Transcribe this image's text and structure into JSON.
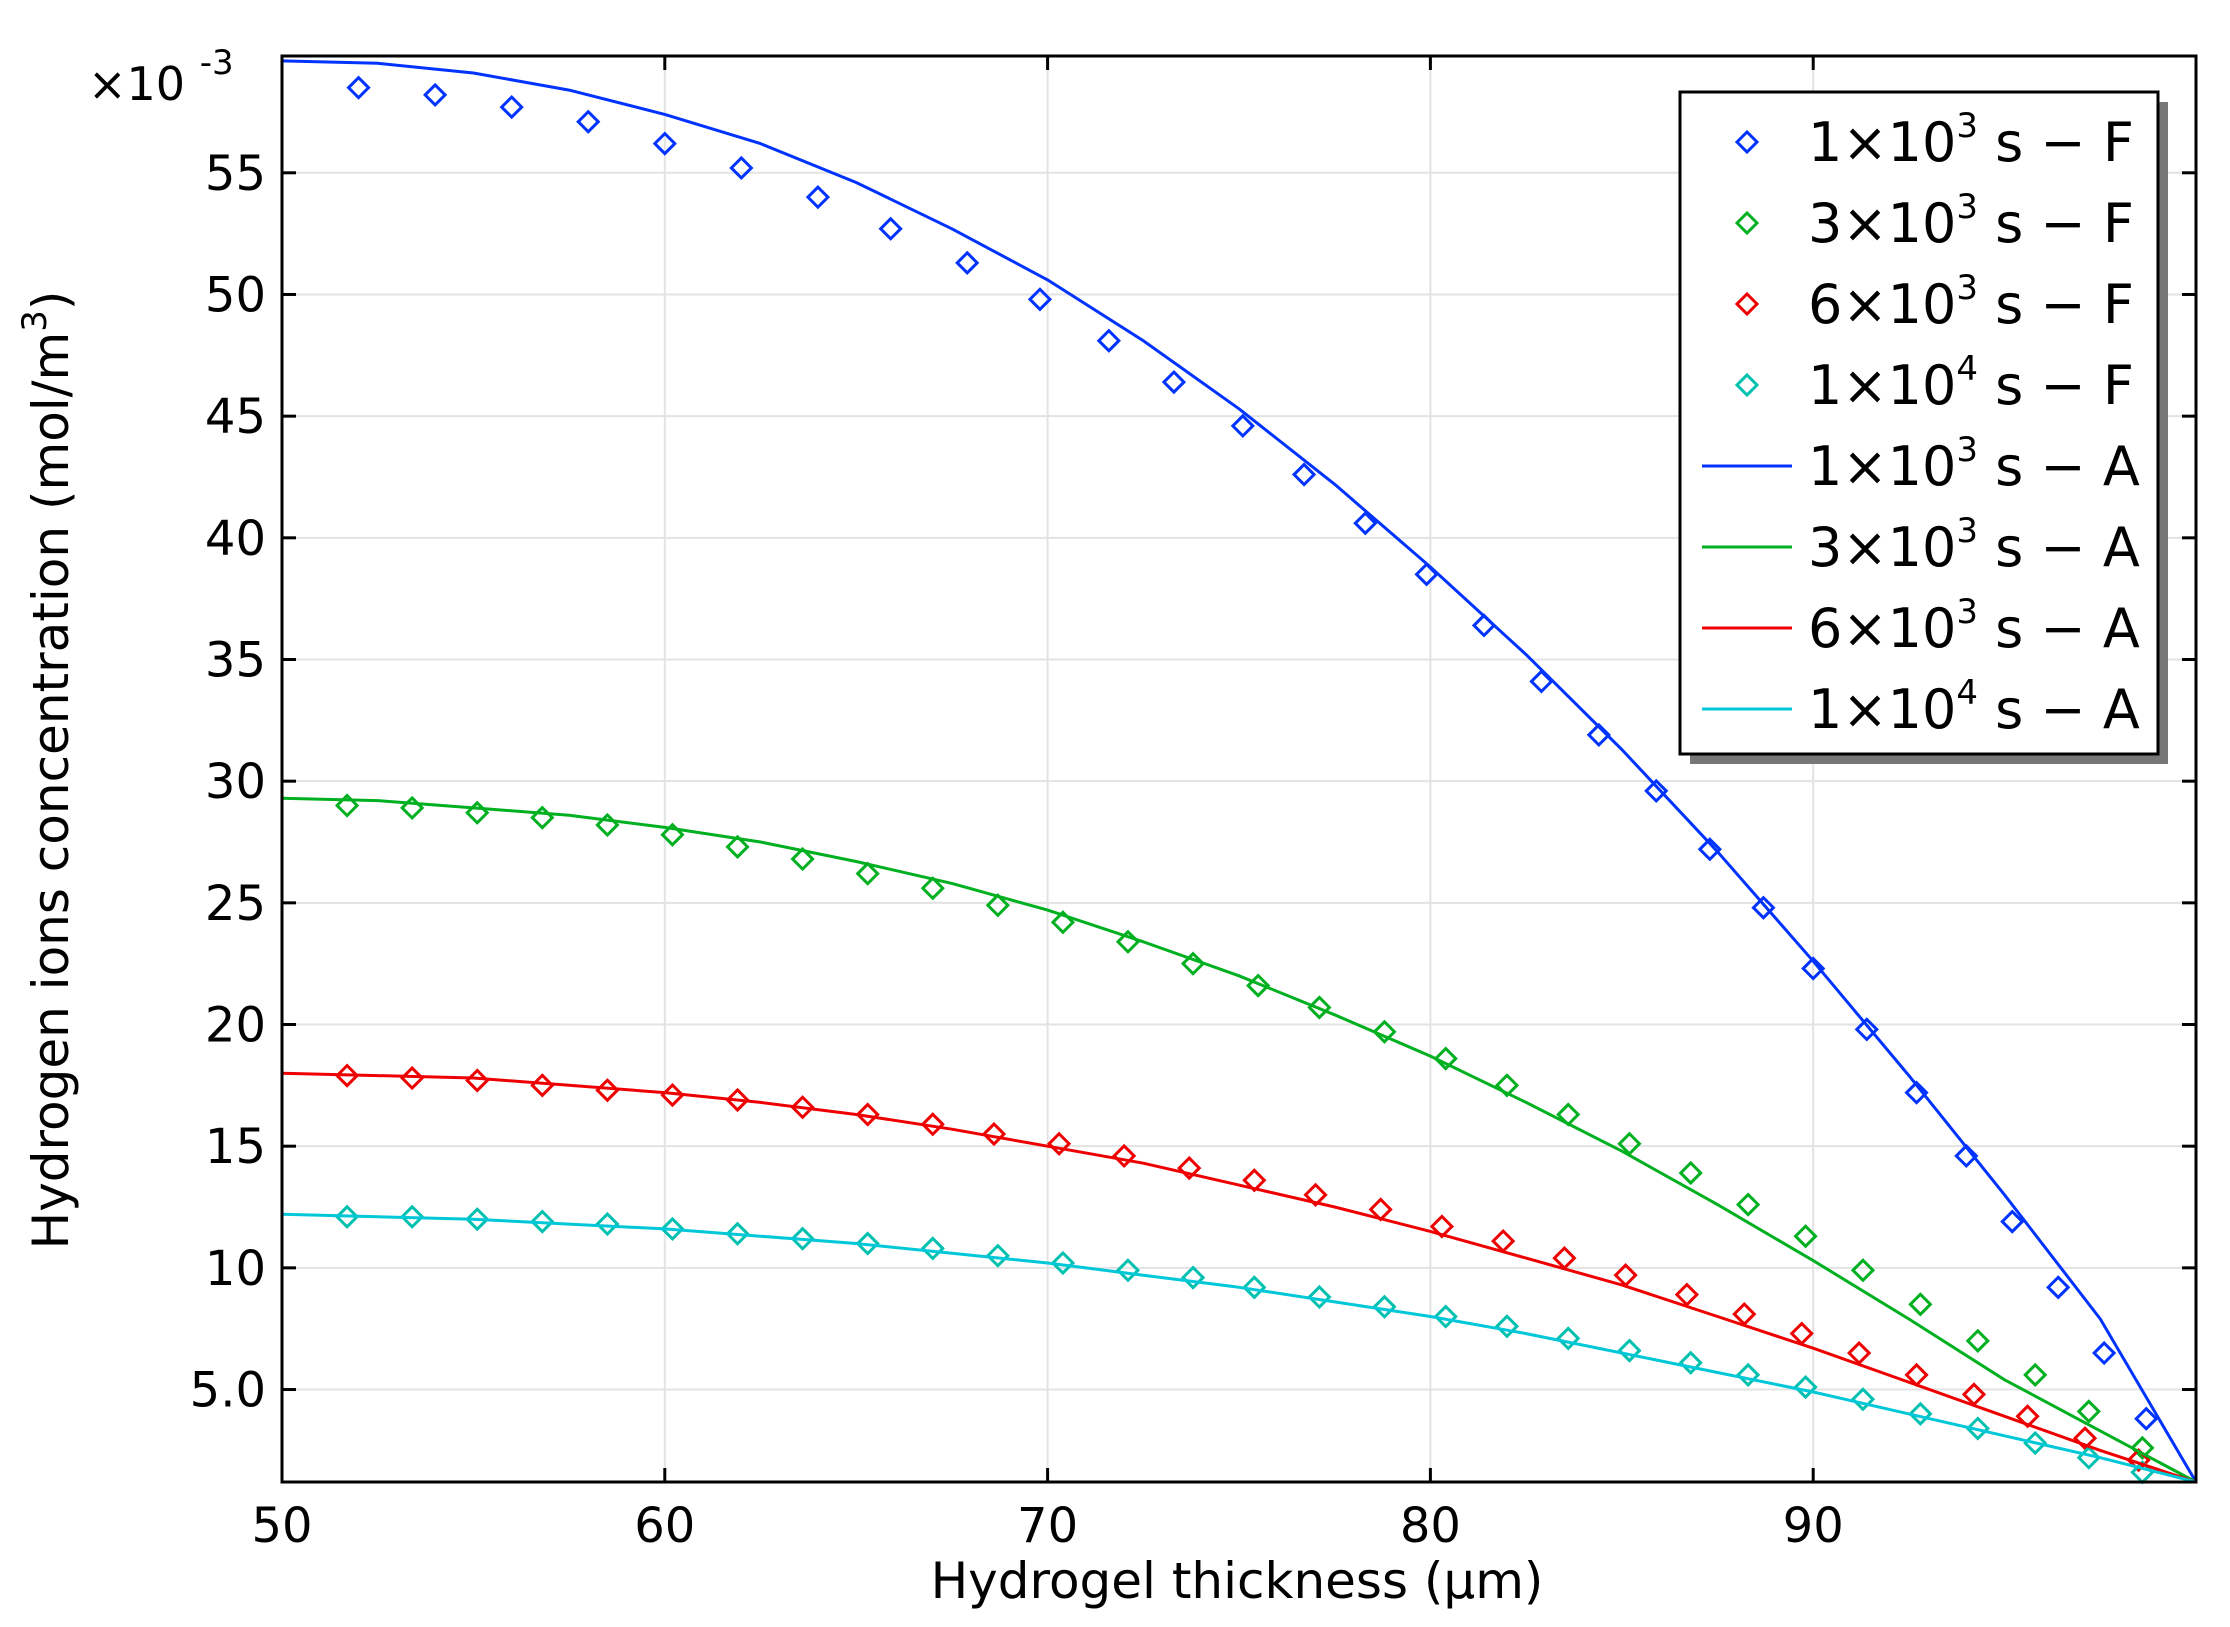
{
  "chart_data": {
    "type": "line",
    "title": "",
    "xlabel": "Hydrogel thickness (µm)",
    "ylabel_prefix": "Hydrogen ions concentration (mol/m",
    "ylabel_sup": "3",
    "ylabel_suffix": ")",
    "y_multiplier_base": "×10",
    "y_multiplier_exp": "-3",
    "xlim": [
      50,
      100
    ],
    "ylim": [
      1.2,
      59.8
    ],
    "xticks": [
      50,
      60,
      70,
      80,
      90
    ],
    "xtick_labels": [
      "50",
      "60",
      "70",
      "80",
      "90"
    ],
    "yticks": [
      5,
      10,
      15,
      20,
      25,
      30,
      35,
      40,
      45,
      50,
      55
    ],
    "ytick_labels": [
      "5.0",
      "10",
      "15",
      "20",
      "25",
      "30",
      "35",
      "40",
      "45",
      "50",
      "55"
    ],
    "grid": true,
    "legend_position": "top-right",
    "series": [
      {
        "name": "1×10³ s − F",
        "base": "1×10",
        "exp": "3",
        "suffix": " s − F",
        "kind": "markers",
        "color": "#0033ff",
        "x": [
          52.0,
          54.0,
          56.0,
          58.0,
          60.0,
          62.0,
          64.0,
          65.9,
          67.9,
          69.8,
          71.6,
          73.3,
          75.1,
          76.7,
          78.3,
          79.9,
          81.4,
          82.9,
          84.4,
          85.9,
          87.3,
          88.7,
          90.0,
          91.4,
          92.7,
          94.0,
          95.2,
          96.4,
          97.6,
          98.7
        ],
        "values": [
          58.5,
          58.2,
          57.7,
          57.1,
          56.2,
          55.2,
          54.0,
          52.7,
          51.3,
          49.8,
          48.1,
          46.4,
          44.6,
          42.6,
          40.6,
          38.5,
          36.4,
          34.1,
          31.9,
          29.6,
          27.2,
          24.8,
          22.3,
          19.8,
          17.2,
          14.6,
          11.9,
          9.2,
          6.5,
          3.8
        ]
      },
      {
        "name": "3×10³ s − F",
        "base": "3×10",
        "exp": "3",
        "suffix": " s − F",
        "kind": "markers",
        "color": "#00b020",
        "x": [
          51.7,
          53.4,
          55.1,
          56.8,
          58.5,
          60.2,
          61.9,
          63.6,
          65.3,
          67.0,
          68.7,
          70.4,
          72.1,
          73.8,
          75.5,
          77.1,
          78.8,
          80.4,
          82.0,
          83.6,
          85.2,
          86.8,
          88.3,
          89.8,
          91.3,
          92.8,
          94.3,
          95.8,
          97.2,
          98.6
        ],
        "values": [
          29.0,
          28.9,
          28.7,
          28.5,
          28.2,
          27.8,
          27.3,
          26.8,
          26.2,
          25.6,
          24.9,
          24.2,
          23.4,
          22.5,
          21.6,
          20.7,
          19.7,
          18.6,
          17.5,
          16.3,
          15.1,
          13.9,
          12.6,
          11.3,
          9.9,
          8.5,
          7.0,
          5.6,
          4.1,
          2.6
        ]
      },
      {
        "name": "6×10³ s − F",
        "base": "6×10",
        "exp": "3",
        "suffix": " s − F",
        "kind": "markers",
        "color": "#ee0000",
        "x": [
          51.7,
          53.4,
          55.1,
          56.8,
          58.5,
          60.2,
          61.9,
          63.6,
          65.3,
          67.0,
          68.6,
          70.3,
          72.0,
          73.7,
          75.4,
          77.0,
          78.7,
          80.3,
          81.9,
          83.5,
          85.1,
          86.7,
          88.2,
          89.7,
          91.2,
          92.7,
          94.2,
          95.6,
          97.1,
          98.5
        ],
        "values": [
          17.9,
          17.8,
          17.7,
          17.5,
          17.3,
          17.1,
          16.9,
          16.6,
          16.3,
          15.9,
          15.5,
          15.1,
          14.6,
          14.1,
          13.6,
          13.0,
          12.4,
          11.7,
          11.1,
          10.4,
          9.7,
          8.9,
          8.1,
          7.3,
          6.5,
          5.6,
          4.8,
          3.9,
          3.0,
          2.1
        ]
      },
      {
        "name": "1×10⁴ s − F",
        "base": "1×10",
        "exp": "4",
        "suffix": " s − F",
        "kind": "markers",
        "color": "#00c0b0",
        "x": [
          51.7,
          53.4,
          55.1,
          56.8,
          58.5,
          60.2,
          61.9,
          63.6,
          65.3,
          67.0,
          68.7,
          70.4,
          72.1,
          73.8,
          75.4,
          77.1,
          78.8,
          80.4,
          82.0,
          83.6,
          85.2,
          86.8,
          88.3,
          89.8,
          91.3,
          92.8,
          94.3,
          95.8,
          97.2,
          98.6
        ],
        "values": [
          12.1,
          12.1,
          12.0,
          11.9,
          11.8,
          11.6,
          11.4,
          11.2,
          11.0,
          10.8,
          10.5,
          10.2,
          9.9,
          9.6,
          9.2,
          8.8,
          8.4,
          8.0,
          7.6,
          7.1,
          6.6,
          6.1,
          5.6,
          5.1,
          4.6,
          4.0,
          3.4,
          2.8,
          2.2,
          1.6
        ]
      },
      {
        "name": "1×10³ s − A",
        "base": "1×10",
        "exp": "3",
        "suffix": " s − A",
        "kind": "line",
        "color": "#0033ff",
        "x": [
          50,
          52.5,
          55,
          57.5,
          60,
          62.5,
          65,
          67.5,
          70,
          72.5,
          75,
          77.5,
          80,
          82.5,
          85,
          87.5,
          90,
          92.5,
          95,
          97.5,
          100
        ],
        "values": [
          59.6,
          59.5,
          59.1,
          58.4,
          57.4,
          56.2,
          54.6,
          52.7,
          50.6,
          48.1,
          45.3,
          42.2,
          38.8,
          35.2,
          31.3,
          27.1,
          22.6,
          17.9,
          13.0,
          7.9,
          1.2
        ]
      },
      {
        "name": "3×10³ s − A",
        "base": "3×10",
        "exp": "3",
        "suffix": " s − A",
        "kind": "line",
        "color": "#00b020",
        "x": [
          50,
          52.5,
          55,
          57.5,
          60,
          62.5,
          65,
          67.5,
          70,
          72.5,
          75,
          77.5,
          80,
          82.5,
          85,
          87.5,
          90,
          92.5,
          95,
          97.5,
          100
        ],
        "values": [
          29.3,
          29.2,
          28.9,
          28.6,
          28.1,
          27.5,
          26.7,
          25.8,
          24.7,
          23.4,
          22.0,
          20.4,
          18.7,
          16.8,
          14.8,
          12.6,
          10.3,
          7.9,
          5.4,
          3.3,
          1.2
        ]
      },
      {
        "name": "6×10³ s − A",
        "base": "6×10",
        "exp": "3",
        "suffix": " s − A",
        "kind": "line",
        "color": "#ee0000",
        "x": [
          50,
          52.5,
          55,
          57.5,
          60,
          62.5,
          65,
          67.5,
          70,
          72.5,
          75,
          77.5,
          80,
          82.5,
          85,
          87.5,
          90,
          92.5,
          95,
          97.5,
          100
        ],
        "values": [
          18.0,
          17.9,
          17.8,
          17.5,
          17.2,
          16.8,
          16.3,
          15.7,
          15.0,
          14.3,
          13.4,
          12.5,
          11.5,
          10.4,
          9.3,
          8.0,
          6.7,
          5.3,
          3.9,
          2.5,
          1.2
        ]
      },
      {
        "name": "1×10⁴ s − A",
        "base": "1×10",
        "exp": "4",
        "suffix": " s − A",
        "kind": "line",
        "color": "#00c8d8",
        "x": [
          50,
          52.5,
          55,
          57.5,
          60,
          62.5,
          65,
          67.5,
          70,
          72.5,
          75,
          77.5,
          80,
          82.5,
          85,
          87.5,
          90,
          92.5,
          95,
          97.5,
          100
        ],
        "values": [
          12.2,
          12.1,
          12.0,
          11.8,
          11.6,
          11.3,
          11.0,
          10.6,
          10.2,
          9.7,
          9.2,
          8.6,
          8.0,
          7.3,
          6.5,
          5.7,
          4.9,
          4.0,
          3.1,
          2.2,
          1.2
        ]
      }
    ]
  }
}
